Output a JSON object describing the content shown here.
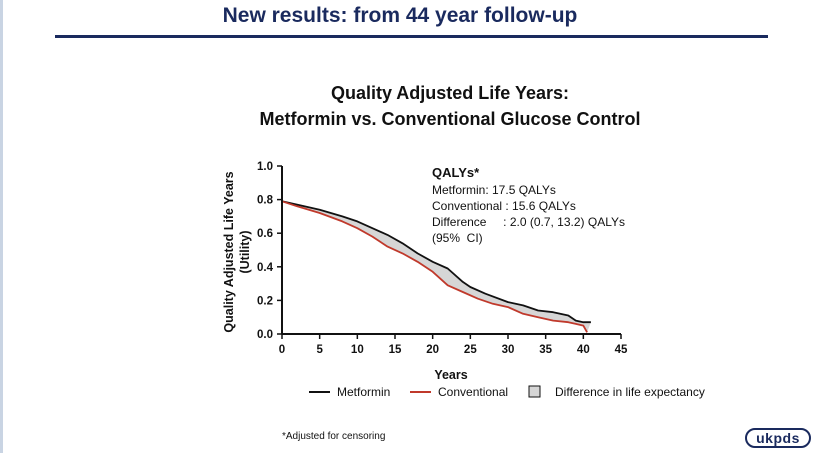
{
  "slide": {
    "title": "New results: from 44 year follow-up",
    "footnote": "*Adjusted for censoring",
    "logo_text": "ukpds"
  },
  "chart_data": {
    "type": "line",
    "title_line1": "Quality Adjusted Life Years:",
    "title_line2": "Metformin vs. Conventional Glucose Control",
    "ylabel_line1": "Quality Adjusted Life Years",
    "ylabel_line2": "(Utility)",
    "xlabel": "Years",
    "xlim": [
      0,
      45
    ],
    "ylim": [
      0,
      1.0
    ],
    "xticks": [
      "0",
      "5",
      "10",
      "15",
      "20",
      "25",
      "30",
      "35",
      "40",
      "45"
    ],
    "yticks": [
      "0.0",
      "0.2",
      "0.4",
      "0.6",
      "0.8",
      "1.0"
    ],
    "grid": false,
    "legend_position": "bottom",
    "series": [
      {
        "name": "Metformin",
        "color": "#111111",
        "points": [
          [
            0,
            0.79
          ],
          [
            2,
            0.77
          ],
          [
            5,
            0.74
          ],
          [
            8,
            0.7
          ],
          [
            10,
            0.67
          ],
          [
            12,
            0.63
          ],
          [
            14,
            0.59
          ],
          [
            16,
            0.54
          ],
          [
            18,
            0.48
          ],
          [
            20,
            0.43
          ],
          [
            22,
            0.39
          ],
          [
            24,
            0.31
          ],
          [
            25,
            0.28
          ],
          [
            27,
            0.24
          ],
          [
            30,
            0.19
          ],
          [
            32,
            0.17
          ],
          [
            34,
            0.14
          ],
          [
            36,
            0.13
          ],
          [
            38,
            0.11
          ],
          [
            39,
            0.08
          ],
          [
            40,
            0.07
          ],
          [
            41,
            0.07
          ]
        ]
      },
      {
        "name": "Conventional",
        "color": "#c0392b",
        "points": [
          [
            0,
            0.79
          ],
          [
            2,
            0.76
          ],
          [
            5,
            0.72
          ],
          [
            8,
            0.67
          ],
          [
            10,
            0.63
          ],
          [
            12,
            0.58
          ],
          [
            14,
            0.52
          ],
          [
            16,
            0.48
          ],
          [
            18,
            0.43
          ],
          [
            20,
            0.37
          ],
          [
            22,
            0.29
          ],
          [
            24,
            0.25
          ],
          [
            26,
            0.21
          ],
          [
            28,
            0.18
          ],
          [
            30,
            0.16
          ],
          [
            32,
            0.12
          ],
          [
            34,
            0.1
          ],
          [
            36,
            0.08
          ],
          [
            38,
            0.07
          ],
          [
            39,
            0.06
          ],
          [
            40,
            0.05
          ],
          [
            40.5,
            0.01
          ]
        ]
      }
    ],
    "difference_fill": {
      "name": "Difference in life expectancy",
      "color": "#d6d6d6"
    },
    "annotation": {
      "heading": "QALYs*",
      "lines": [
        "Metformin: 17.5 QALYs",
        "Conventional : 15.6 QALYs",
        "Difference     : 2.0 (0.7, 13.2) QALYs",
        "(95%  CI)"
      ]
    }
  }
}
